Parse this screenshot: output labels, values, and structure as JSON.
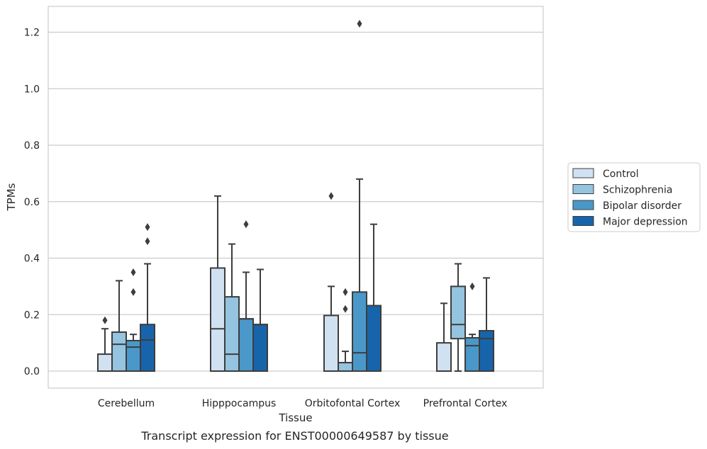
{
  "caption": "Transcript expression for ENST00000649587 by tissue",
  "chart_data": {
    "type": "boxplot",
    "xlabel": "Tissue",
    "ylabel": "TPMs",
    "ylim": [
      -0.06,
      1.29
    ],
    "yticks": [
      "0.0",
      "0.2",
      "0.4",
      "0.6",
      "0.8",
      "1.0",
      "1.2"
    ],
    "grid": true,
    "legend_position": "right",
    "categories": [
      "Cerebellum",
      "Hipppocampus",
      "Orbitofontal Cortex",
      "Prefrontal Cortex"
    ],
    "series": [
      {
        "name": "Control",
        "color": "#d0e1f2",
        "boxes": [
          {
            "whislo": 0.0,
            "q1": 0.0,
            "med": 0.0,
            "q3": 0.06,
            "whishi": 0.15,
            "fliers": [
              0.18
            ]
          },
          {
            "whislo": 0.0,
            "q1": 0.0,
            "med": 0.15,
            "q3": 0.365,
            "whishi": 0.62,
            "fliers": []
          },
          {
            "whislo": 0.0,
            "q1": 0.0,
            "med": 0.0,
            "q3": 0.197,
            "whishi": 0.3,
            "fliers": [
              0.62
            ]
          },
          {
            "whislo": 0.0,
            "q1": 0.0,
            "med": 0.0,
            "q3": 0.1,
            "whishi": 0.24,
            "fliers": []
          }
        ]
      },
      {
        "name": "Schizophrenia",
        "color": "#94c4df",
        "boxes": [
          {
            "whislo": 0.0,
            "q1": 0.0,
            "med": 0.095,
            "q3": 0.138,
            "whishi": 0.32,
            "fliers": []
          },
          {
            "whislo": 0.0,
            "q1": 0.0,
            "med": 0.06,
            "q3": 0.263,
            "whishi": 0.45,
            "fliers": []
          },
          {
            "whislo": 0.0,
            "q1": 0.0,
            "med": 0.03,
            "q3": 0.03,
            "whishi": 0.07,
            "fliers": [
              0.22,
              0.28
            ]
          },
          {
            "whislo": 0.0,
            "q1": 0.115,
            "med": 0.165,
            "q3": 0.3,
            "whishi": 0.38,
            "fliers": []
          }
        ]
      },
      {
        "name": "Bipolar disorder",
        "color": "#4a98c9",
        "boxes": [
          {
            "whislo": 0.0,
            "q1": 0.0,
            "med": 0.085,
            "q3": 0.108,
            "whishi": 0.13,
            "fliers": [
              0.28,
              0.35
            ]
          },
          {
            "whislo": 0.0,
            "q1": 0.0,
            "med": 0.185,
            "q3": 0.185,
            "whishi": 0.35,
            "fliers": [
              0.52
            ]
          },
          {
            "whislo": 0.0,
            "q1": 0.0,
            "med": 0.065,
            "q3": 0.28,
            "whishi": 0.68,
            "fliers": [
              1.23
            ]
          },
          {
            "whislo": 0.0,
            "q1": 0.0,
            "med": 0.09,
            "q3": 0.118,
            "whishi": 0.13,
            "fliers": [
              0.3
            ]
          }
        ]
      },
      {
        "name": "Major depression",
        "color": "#1764ab",
        "boxes": [
          {
            "whislo": 0.0,
            "q1": 0.0,
            "med": 0.11,
            "q3": 0.165,
            "whishi": 0.38,
            "fliers": [
              0.46,
              0.51
            ]
          },
          {
            "whislo": 0.0,
            "q1": 0.0,
            "med": 0.165,
            "q3": 0.165,
            "whishi": 0.36,
            "fliers": []
          },
          {
            "whislo": 0.0,
            "q1": 0.0,
            "med": 0.232,
            "q3": 0.232,
            "whishi": 0.52,
            "fliers": []
          },
          {
            "whislo": 0.0,
            "q1": 0.0,
            "med": 0.115,
            "q3": 0.143,
            "whishi": 0.33,
            "fliers": []
          }
        ]
      }
    ]
  }
}
